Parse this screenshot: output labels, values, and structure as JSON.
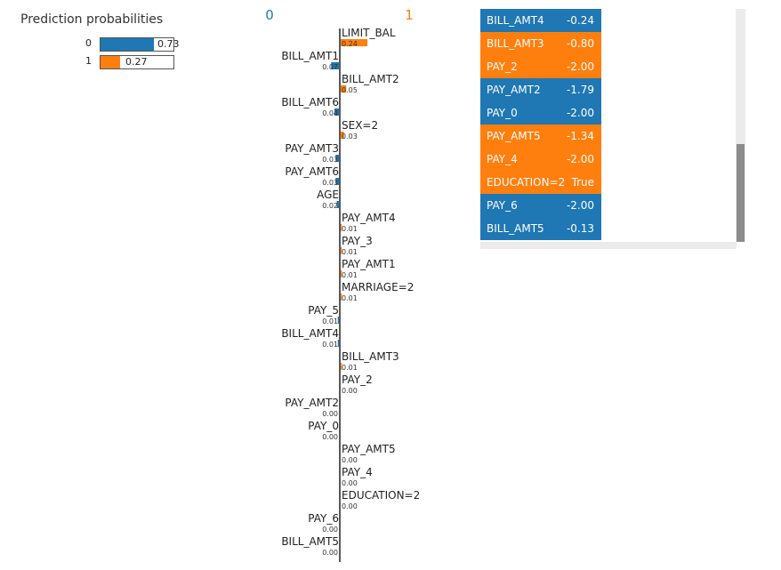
{
  "prediction": {
    "title": "Prediction probabilities",
    "classes": [
      {
        "label": "0",
        "value": 0.73,
        "value_text": "0.73",
        "color": "#1f77b4"
      },
      {
        "label": "1",
        "value": 0.27,
        "value_text": "0.27",
        "color": "#ff7f0e"
      }
    ]
  },
  "chart_data": {
    "type": "bar",
    "orientation": "horizontal-diverging",
    "left_class_label": "0",
    "right_class_label": "1",
    "left_color": "#1f77b4",
    "right_color": "#ff7f0e",
    "features": [
      {
        "name": "LIMIT_BAL",
        "weight": 0.24,
        "label": "0.24",
        "side": "right"
      },
      {
        "name": "BILL_AMT1",
        "weight": 0.07,
        "label": "0.07",
        "side": "left"
      },
      {
        "name": "BILL_AMT2",
        "weight": 0.05,
        "label": "0.05",
        "side": "right"
      },
      {
        "name": "BILL_AMT6",
        "weight": 0.04,
        "label": "0.04",
        "side": "left"
      },
      {
        "name": "SEX=2",
        "weight": 0.03,
        "label": "0.03",
        "side": "right"
      },
      {
        "name": "PAY_AMT3",
        "weight": 0.03,
        "label": "0.03",
        "side": "left"
      },
      {
        "name": "PAY_AMT6",
        "weight": 0.03,
        "label": "0.03",
        "side": "left"
      },
      {
        "name": "AGE",
        "weight": 0.02,
        "label": "0.02",
        "side": "left"
      },
      {
        "name": "PAY_AMT4",
        "weight": 0.01,
        "label": "0.01",
        "side": "right"
      },
      {
        "name": "PAY_3",
        "weight": 0.01,
        "label": "0.01",
        "side": "right"
      },
      {
        "name": "PAY_AMT1",
        "weight": 0.01,
        "label": "0.01",
        "side": "right"
      },
      {
        "name": "MARRIAGE=2",
        "weight": 0.01,
        "label": "0.01",
        "side": "right"
      },
      {
        "name": "PAY_5",
        "weight": 0.01,
        "label": "0.01",
        "side": "left"
      },
      {
        "name": "BILL_AMT4",
        "weight": 0.01,
        "label": "0.01",
        "side": "left"
      },
      {
        "name": "BILL_AMT3",
        "weight": 0.01,
        "label": "0.01",
        "side": "right"
      },
      {
        "name": "PAY_2",
        "weight": 0.0,
        "label": "0.00",
        "side": "right"
      },
      {
        "name": "PAY_AMT2",
        "weight": 0.0,
        "label": "0.00",
        "side": "left"
      },
      {
        "name": "PAY_0",
        "weight": 0.0,
        "label": "0.00",
        "side": "left"
      },
      {
        "name": "PAY_AMT5",
        "weight": 0.0,
        "label": "0.00",
        "side": "right"
      },
      {
        "name": "PAY_4",
        "weight": 0.0,
        "label": "0.00",
        "side": "right"
      },
      {
        "name": "EDUCATION=2",
        "weight": 0.0,
        "label": "0.00",
        "side": "right"
      },
      {
        "name": "PAY_6",
        "weight": 0.0,
        "label": "0.00",
        "side": "left"
      },
      {
        "name": "BILL_AMT5",
        "weight": 0.0,
        "label": "0.00",
        "side": "left"
      }
    ]
  },
  "feature_table": {
    "rows": [
      {
        "feature": "BILL_AMT4",
        "value": "-0.24",
        "side": "left"
      },
      {
        "feature": "BILL_AMT3",
        "value": "-0.80",
        "side": "right"
      },
      {
        "feature": "PAY_2",
        "value": "-2.00",
        "side": "right"
      },
      {
        "feature": "PAY_AMT2",
        "value": "-1.79",
        "side": "left"
      },
      {
        "feature": "PAY_0",
        "value": "-2.00",
        "side": "left"
      },
      {
        "feature": "PAY_AMT5",
        "value": "-1.34",
        "side": "right"
      },
      {
        "feature": "PAY_4",
        "value": "-2.00",
        "side": "right"
      },
      {
        "feature": "EDUCATION=2",
        "value": "True",
        "side": "right"
      },
      {
        "feature": "PAY_6",
        "value": "-2.00",
        "side": "left"
      },
      {
        "feature": "BILL_AMT5",
        "value": "-0.13",
        "side": "left"
      }
    ]
  }
}
